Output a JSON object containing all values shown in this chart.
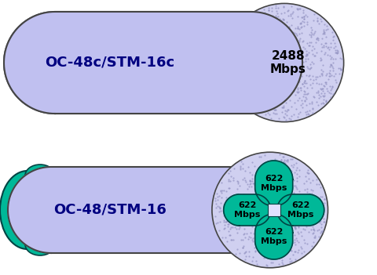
{
  "bg_color": "#ffffff",
  "top_tube_color": "#c0c0f0",
  "top_tube_border": "#444444",
  "top_circle_color": "#d0d0f0",
  "top_circle_stipple": "#b8b8e8",
  "top_circle_border": "#444444",
  "top_label": "OC-48c/STM-16c",
  "top_value": "2488\nMbps",
  "bottom_tube_color": "#c0c0f0",
  "bottom_tube_border": "#444444",
  "bottom_label": "OC-48/STM-16",
  "bottom_big_circle_color": "#d0d0f0",
  "bottom_big_circle_border": "#444444",
  "green_color": "#00b898",
  "green_border": "#004444",
  "sub_value": "622\nMbps",
  "label_fontsize": 13,
  "value_fontsize": 11,
  "sub_fontsize": 8
}
